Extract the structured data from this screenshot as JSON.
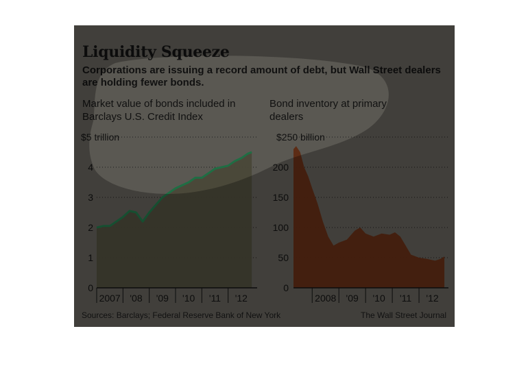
{
  "figure": {
    "title": "Liquidity Squeeze",
    "subtitle": "Corporations are issuing a record amount of debt, but Wall Street dealers are holding fewer bonds.",
    "source": "Sources: Barclays; Federal Reserve Bank of New York",
    "credit": "The Wall Street Journal"
  },
  "colors": {
    "background": "#5a5852",
    "line": "#1f6e44",
    "area_left": "#4a4838",
    "area_right": "#5e2a12",
    "grid": "#1a1a1a"
  },
  "chart_data": [
    {
      "type": "area",
      "label": "Market value of bonds included in Barclays U.S. Credit Index",
      "y_tick_labels": [
        "0",
        "1",
        "2",
        "3",
        "4",
        "$5 trillion"
      ],
      "x_tick_labels": [
        "2007",
        "'08",
        "'09",
        "'10",
        "'11",
        "'12"
      ],
      "ylim": [
        0,
        5
      ],
      "xlim": [
        2007.0,
        2013.0
      ],
      "grid": true,
      "series": [
        {
          "x": [
            2007.0,
            2007.25,
            2007.5,
            2007.75,
            2008.0,
            2008.25,
            2008.5,
            2008.75,
            2009.0,
            2009.25,
            2009.5,
            2009.75,
            2010.0,
            2010.25,
            2010.5,
            2010.75,
            2011.0,
            2011.25,
            2011.5,
            2011.75,
            2012.0,
            2012.25,
            2012.5,
            2012.75,
            2012.9
          ],
          "values": [
            2.0,
            2.05,
            2.05,
            2.2,
            2.35,
            2.55,
            2.5,
            2.2,
            2.5,
            2.75,
            3.0,
            3.15,
            3.3,
            3.4,
            3.5,
            3.65,
            3.65,
            3.8,
            3.95,
            4.0,
            4.05,
            4.2,
            4.3,
            4.45,
            4.5
          ]
        }
      ]
    },
    {
      "type": "area",
      "label": "Bond inventory at primary dealers",
      "y_tick_labels": [
        "0",
        "50",
        "100",
        "150",
        "200",
        "$250 billion"
      ],
      "x_tick_labels": [
        "2008",
        "'09",
        "'10",
        "'11",
        "'12"
      ],
      "ylim": [
        0,
        250
      ],
      "xlim": [
        2007.3,
        2013.0
      ],
      "grid": true,
      "series": [
        {
          "x": [
            2007.3,
            2007.4,
            2007.55,
            2007.7,
            2007.85,
            2008.0,
            2008.2,
            2008.4,
            2008.6,
            2008.8,
            2009.0,
            2009.3,
            2009.6,
            2009.8,
            2010.0,
            2010.3,
            2010.6,
            2010.9,
            2011.1,
            2011.3,
            2011.5,
            2011.7,
            2012.0,
            2012.3,
            2012.6,
            2012.8,
            2012.95
          ],
          "values": [
            230,
            235,
            225,
            200,
            185,
            165,
            140,
            110,
            85,
            70,
            75,
            80,
            95,
            100,
            90,
            85,
            90,
            88,
            92,
            85,
            70,
            55,
            50,
            48,
            45,
            48,
            52
          ]
        }
      ]
    }
  ]
}
